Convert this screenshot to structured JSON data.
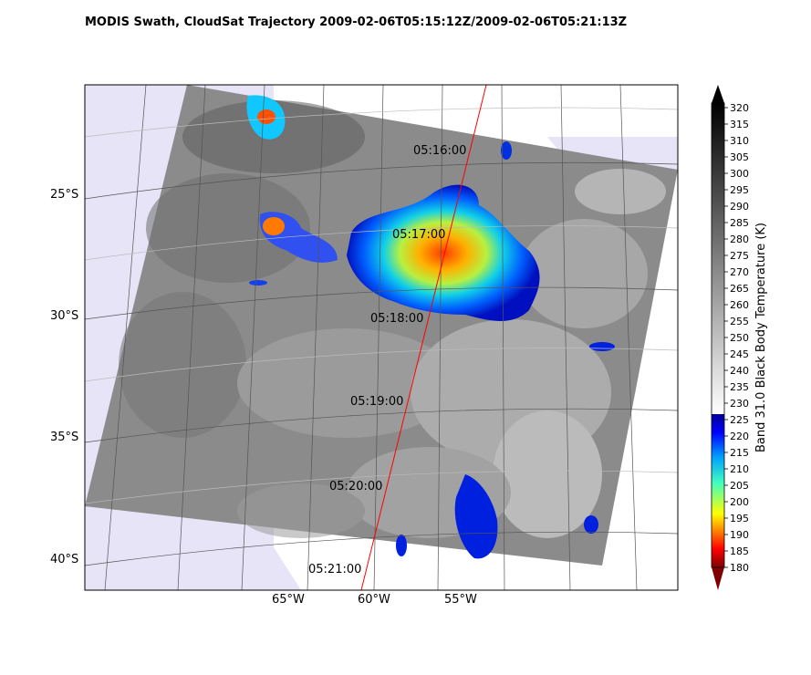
{
  "title": "MODIS Swath, CloudSat Trajectory 2009-02-06T05:15:12Z/2009-02-06T05:21:13Z",
  "map": {
    "lat_labels": [
      "25°S",
      "30°S",
      "35°S",
      "40°S"
    ],
    "lon_labels": [
      "65°W",
      "60°W",
      "55°W"
    ],
    "time_labels": [
      "05:16:00",
      "05:17:00",
      "05:18:00",
      "05:19:00",
      "05:20:00",
      "05:21:00"
    ],
    "colors": {
      "land": "#e6e4f6",
      "grid": "#444444",
      "track": "#ff0000",
      "swath_gray": "#8a8a8a"
    }
  },
  "colorbar": {
    "label": "Band 31.0 Black Body Temperature (K)",
    "ticks": [
      "180",
      "185",
      "190",
      "195",
      "200",
      "205",
      "210",
      "215",
      "220",
      "225",
      "230",
      "235",
      "240",
      "245",
      "250",
      "255",
      "260",
      "265",
      "270",
      "275",
      "280",
      "285",
      "290",
      "295",
      "300",
      "305",
      "310",
      "315",
      "320"
    ],
    "range": [
      180,
      320
    ],
    "split_value": 240
  }
}
